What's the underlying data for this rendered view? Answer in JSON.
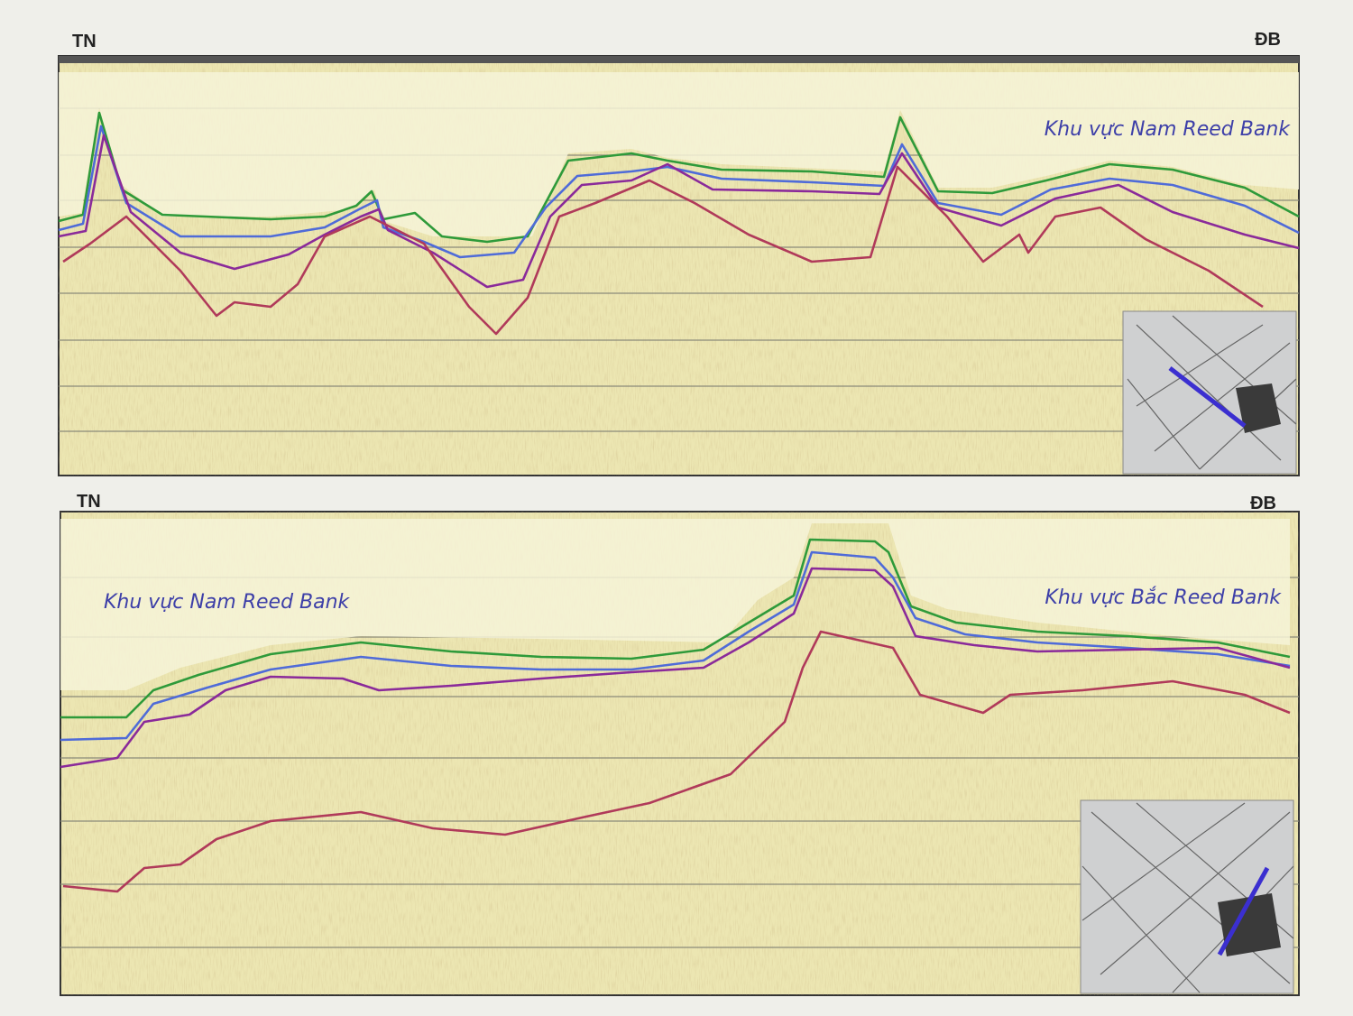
{
  "panels": [
    {
      "left_label": "TN",
      "right_label": "ĐB",
      "annotations": [
        "Khu vực Nam Reed Bank"
      ]
    },
    {
      "left_label": "TN",
      "right_label": "ĐB",
      "annotations": [
        "Khu vực Nam Reed Bank",
        "Khu vực Bắc Reed Bank"
      ]
    }
  ]
}
